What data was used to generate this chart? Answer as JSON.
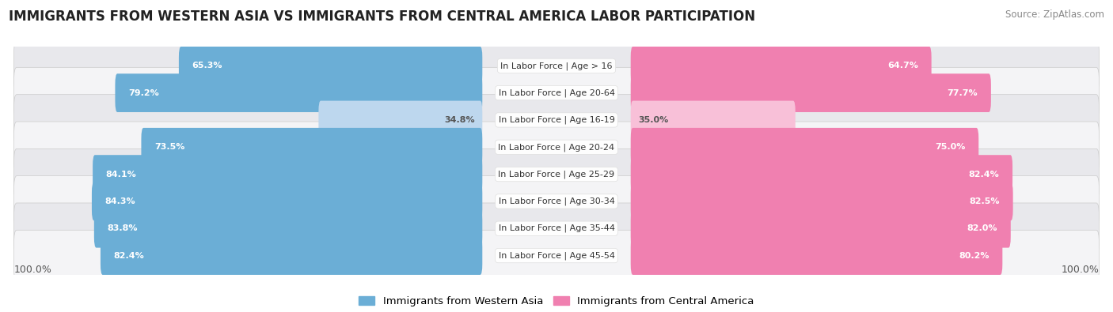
{
  "title": "IMMIGRANTS FROM WESTERN ASIA VS IMMIGRANTS FROM CENTRAL AMERICA LABOR PARTICIPATION",
  "source": "Source: ZipAtlas.com",
  "categories": [
    "In Labor Force | Age > 16",
    "In Labor Force | Age 20-64",
    "In Labor Force | Age 16-19",
    "In Labor Force | Age 20-24",
    "In Labor Force | Age 25-29",
    "In Labor Force | Age 30-34",
    "In Labor Force | Age 35-44",
    "In Labor Force | Age 45-54"
  ],
  "western_asia": [
    65.3,
    79.2,
    34.8,
    73.5,
    84.1,
    84.3,
    83.8,
    82.4
  ],
  "central_america": [
    64.7,
    77.7,
    35.0,
    75.0,
    82.4,
    82.5,
    82.0,
    80.2
  ],
  "blue_color": "#6BAED6",
  "blue_light_color": "#BDD7EE",
  "pink_color": "#F080B0",
  "pink_light_color": "#F8C0D8",
  "row_bg_dark": "#E8E8EC",
  "row_bg_light": "#F4F4F6",
  "legend_blue": "Immigrants from Western Asia",
  "legend_pink": "Immigrants from Central America",
  "axis_label_left": "100.0%",
  "axis_label_right": "100.0%",
  "title_fontsize": 12,
  "source_fontsize": 8.5,
  "label_fontsize": 9,
  "bar_label_fontsize": 8,
  "category_fontsize": 8,
  "max_value": 100.0
}
